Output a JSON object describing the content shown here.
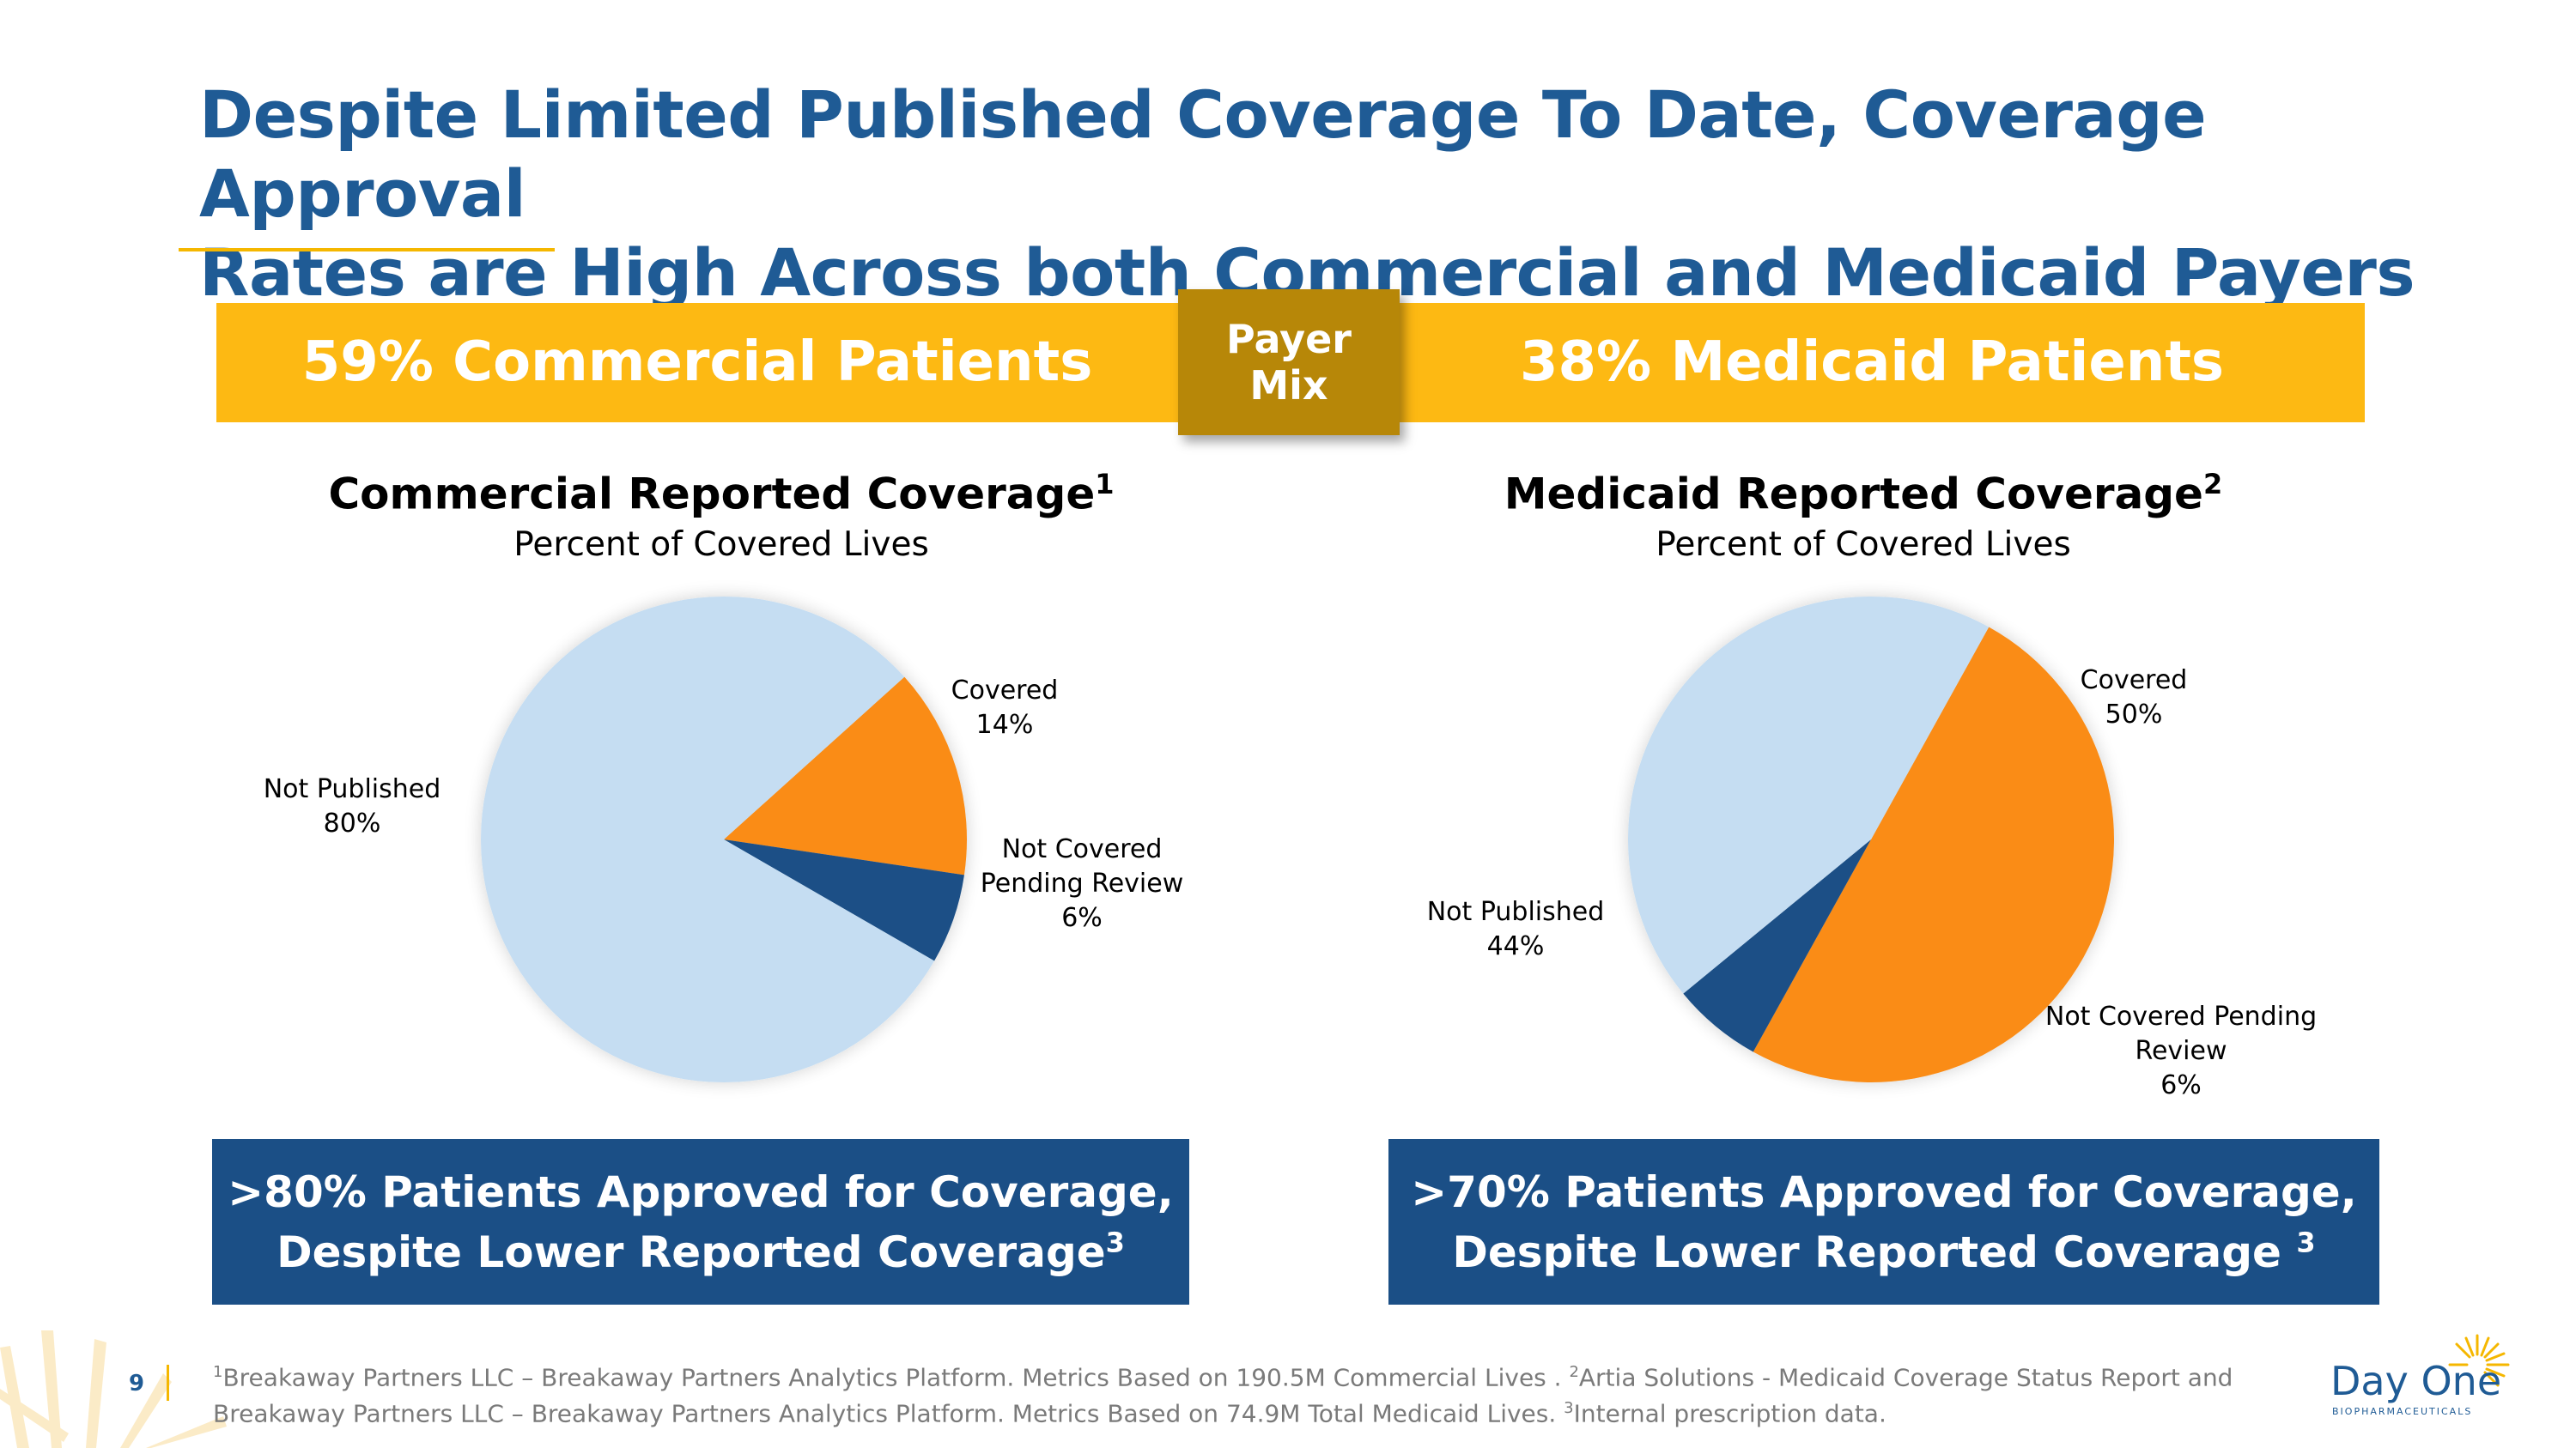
{
  "title_line1": "Despite Limited Published Coverage To Date, Coverage Approval",
  "title_line2": "Rates are High Across both Commercial and Medicaid Payers",
  "banner_left": "59% Commercial Patients",
  "banner_right": "38% Medicaid Patients",
  "payer_mix_line1": "Payer",
  "payer_mix_line2": "Mix",
  "callout_left": {
    "line1": ">80% Patients Approved for Coverage,",
    "line2": "Despite Lower Reported Coverage",
    "sup": "3"
  },
  "callout_right": {
    "line1": ">70% Patients Approved for Coverage,",
    "line2": "Despite Lower Reported Coverage",
    "sup": "3"
  },
  "page_number": "9",
  "footnote": {
    "s1": "1",
    "t1": "Breakaway Partners LLC – Breakaway Partners Analytics Platform. Metrics Based on 190.5M Commercial Lives . ",
    "s2": "2",
    "t2": "Artia Solutions - Medicaid Coverage Status Report and Breakaway Partners LLC – Breakaway Partners Analytics Platform. Metrics Based on 74.9M Total Medicaid Lives.  ",
    "s3": "3",
    "t3": "Internal prescription data."
  },
  "logo": {
    "name": "Day One",
    "sub": "BIOPHARMACEUTICALS"
  },
  "colors": {
    "covered": "#fa8c16",
    "not_covered": "#1b4f86",
    "not_published": "#c5ddf2",
    "banner": "#fdb913",
    "payer_mix": "#b78708",
    "title": "#1f5b95"
  },
  "chart_data": [
    {
      "type": "pie",
      "title": "Commercial Reported Coverage",
      "title_sup": "1",
      "subtitle": "Percent of Covered Lives",
      "slices": [
        {
          "label": "Covered",
          "value": 14,
          "value_text": "14%",
          "color": "#fa8c16"
        },
        {
          "label": "Not Covered",
          "label2": "Pending Review",
          "value": 6,
          "value_text": "6%",
          "color": "#1b4f86"
        },
        {
          "label": "Not Published",
          "value": 80,
          "value_text": "80%",
          "color": "#c5ddf2"
        }
      ]
    },
    {
      "type": "pie",
      "title": "Medicaid Reported Coverage",
      "title_sup": "2",
      "subtitle": "Percent of Covered Lives",
      "slices": [
        {
          "label": "Covered",
          "value": 50,
          "value_text": "50%",
          "color": "#fa8c16"
        },
        {
          "label": "Not Covered Pending",
          "label2": "Review",
          "value": 6,
          "value_text": "6%",
          "color": "#1b4f86"
        },
        {
          "label": "Not Published",
          "value": 44,
          "value_text": "44%",
          "color": "#c5ddf2"
        }
      ]
    }
  ]
}
